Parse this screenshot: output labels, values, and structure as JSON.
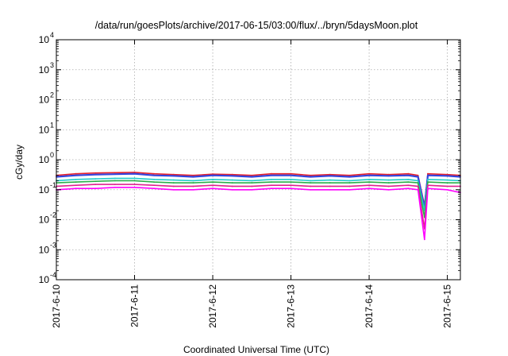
{
  "chart_data": {
    "type": "line",
    "title": "/data/run/goesPlots/archive/2017-06-15/03:00/flux/../bryn/5daysMoon.plot",
    "xlabel": "Coordinated Universal Time (UTC)",
    "ylabel": "cGy/day",
    "y_scale": "log",
    "ylim": [
      0.0001,
      10000
    ],
    "xlim": [
      "2017-06-10T00:00",
      "2017-06-15T04:00"
    ],
    "grid": true,
    "x_ticks": [
      {
        "value": "2017-06-10T00:00",
        "label": "2017-6-10"
      },
      {
        "value": "2017-06-11T00:00",
        "label": "2017-6-11"
      },
      {
        "value": "2017-06-12T00:00",
        "label": "2017-6-12"
      },
      {
        "value": "2017-06-13T00:00",
        "label": "2017-6-13"
      },
      {
        "value": "2017-06-14T00:00",
        "label": "2017-6-14"
      },
      {
        "value": "2017-06-15T00:00",
        "label": "2017-6-15"
      }
    ],
    "y_ticks": [
      {
        "value": 0.0001,
        "base": "10",
        "exp": "-4"
      },
      {
        "value": 0.001,
        "base": "10",
        "exp": "-3"
      },
      {
        "value": 0.01,
        "base": "10",
        "exp": "-2"
      },
      {
        "value": 0.1,
        "base": "10",
        "exp": "-1"
      },
      {
        "value": 1,
        "base": "10",
        "exp": "0"
      },
      {
        "value": 10,
        "base": "10",
        "exp": "1"
      },
      {
        "value": 100,
        "base": "10",
        "exp": "2"
      },
      {
        "value": 1000,
        "base": "10",
        "exp": "3"
      },
      {
        "value": 10000,
        "base": "10",
        "exp": "4"
      }
    ],
    "x": [
      "2017-06-10T00:00",
      "2017-06-10T06:00",
      "2017-06-10T12:00",
      "2017-06-10T18:00",
      "2017-06-11T00:00",
      "2017-06-11T06:00",
      "2017-06-11T12:00",
      "2017-06-11T18:00",
      "2017-06-12T00:00",
      "2017-06-12T06:00",
      "2017-06-12T12:00",
      "2017-06-12T18:00",
      "2017-06-13T00:00",
      "2017-06-13T06:00",
      "2017-06-13T12:00",
      "2017-06-13T18:00",
      "2017-06-14T00:00",
      "2017-06-14T06:00",
      "2017-06-14T12:00",
      "2017-06-14T15:00",
      "2017-06-14T17:00",
      "2017-06-14T18:00",
      "2017-06-15T00:00",
      "2017-06-15T04:00"
    ],
    "series": [
      {
        "color": "#e8202a",
        "values": [
          0.3,
          0.34,
          0.36,
          0.37,
          0.38,
          0.34,
          0.32,
          0.3,
          0.33,
          0.32,
          0.3,
          0.34,
          0.34,
          0.3,
          0.32,
          0.3,
          0.34,
          0.32,
          0.34,
          0.3,
          0.03,
          0.34,
          0.32,
          0.3
        ]
      },
      {
        "color": "#3344dd",
        "values": [
          0.27,
          0.3,
          0.32,
          0.33,
          0.34,
          0.3,
          0.29,
          0.27,
          0.3,
          0.29,
          0.27,
          0.3,
          0.3,
          0.27,
          0.29,
          0.27,
          0.3,
          0.29,
          0.3,
          0.27,
          0.025,
          0.3,
          0.29,
          0.27
        ]
      },
      {
        "color": "#22cccc",
        "values": [
          0.2,
          0.22,
          0.23,
          0.24,
          0.24,
          0.22,
          0.21,
          0.2,
          0.22,
          0.21,
          0.2,
          0.22,
          0.22,
          0.2,
          0.21,
          0.2,
          0.22,
          0.21,
          0.22,
          0.2,
          0.02,
          0.22,
          0.21,
          0.2
        ]
      },
      {
        "color": "#2ab04a",
        "values": [
          0.17,
          0.18,
          0.19,
          0.2,
          0.2,
          0.18,
          0.17,
          0.17,
          0.18,
          0.17,
          0.17,
          0.18,
          0.18,
          0.17,
          0.17,
          0.17,
          0.18,
          0.17,
          0.18,
          0.17,
          0.012,
          0.18,
          0.17,
          0.17
        ]
      },
      {
        "color": "#e02090",
        "values": [
          0.13,
          0.14,
          0.15,
          0.15,
          0.15,
          0.14,
          0.13,
          0.13,
          0.14,
          0.13,
          0.13,
          0.14,
          0.14,
          0.13,
          0.13,
          0.13,
          0.14,
          0.13,
          0.14,
          0.13,
          0.005,
          0.14,
          0.13,
          0.13
        ]
      },
      {
        "color": "#ff00ff",
        "values": [
          0.1,
          0.11,
          0.11,
          0.12,
          0.12,
          0.11,
          0.1,
          0.1,
          0.11,
          0.1,
          0.1,
          0.11,
          0.11,
          0.1,
          0.1,
          0.1,
          0.11,
          0.1,
          0.11,
          0.1,
          0.0022,
          0.11,
          0.1,
          0.08
        ]
      }
    ]
  }
}
